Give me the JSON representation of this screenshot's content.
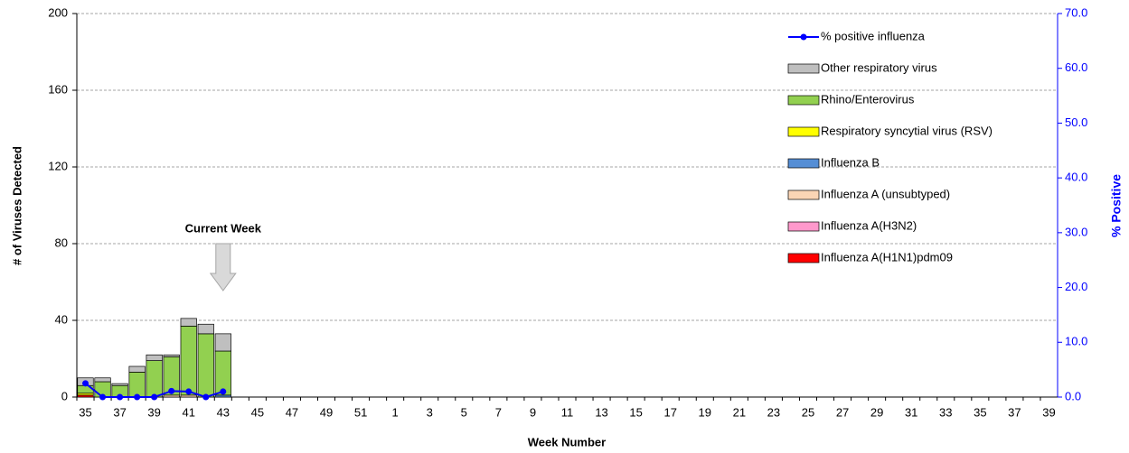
{
  "chart_data": {
    "type": "bar",
    "stacked": true,
    "annotation": "Current Week",
    "xlabel": "Week Number",
    "ylabel": "# of Viruses Detected",
    "y2label": "% Positive",
    "categories": [
      35,
      null,
      37,
      null,
      39,
      null,
      41,
      null,
      43,
      null,
      45,
      null,
      47,
      null,
      49,
      null,
      51,
      null,
      1,
      null,
      3,
      null,
      5,
      null,
      7,
      null,
      9,
      null,
      11,
      null,
      13,
      null,
      15,
      null,
      17,
      null,
      19,
      null,
      21,
      null,
      23,
      null,
      25,
      null,
      27,
      null,
      29,
      null,
      31,
      null,
      33,
      null,
      35,
      null,
      37,
      null,
      39
    ],
    "ylim": [
      0,
      200
    ],
    "yticks": [
      0,
      40,
      80,
      120,
      160,
      200
    ],
    "y2lim": [
      0,
      70
    ],
    "y2ticks": [
      {
        "value": 0,
        "label": "0.0"
      },
      {
        "value": 10,
        "label": "10.0"
      },
      {
        "value": 20,
        "label": "20.0"
      },
      {
        "value": 30,
        "label": "30.0"
      },
      {
        "value": 40,
        "label": "40.0"
      },
      {
        "value": 50,
        "label": "50.0"
      },
      {
        "value": 60,
        "label": "60.0"
      },
      {
        "value": 70,
        "label": "70.0"
      }
    ],
    "grid": true,
    "legend": "upper right",
    "series": [
      {
        "name": "Influenza A(H1N1)pdm09",
        "color": "#ff0000",
        "values": [
          1,
          0,
          0,
          0,
          0,
          0,
          0,
          0,
          0,
          null,
          null,
          null,
          null,
          null,
          null,
          null,
          null,
          null,
          null,
          null,
          null,
          null,
          null,
          null,
          null,
          null,
          null,
          null,
          null,
          null,
          null,
          null,
          null,
          null,
          null,
          null,
          null,
          null,
          null,
          null,
          null,
          null,
          null,
          null,
          null,
          null,
          null,
          null,
          null,
          null,
          null,
          null,
          null,
          null,
          null,
          null,
          null
        ]
      },
      {
        "name": "Influenza A(H3N2)",
        "color": "#ff99cc",
        "values": [
          0,
          0,
          0,
          0,
          0,
          0,
          0,
          0,
          0,
          null,
          null,
          null,
          null,
          null,
          null,
          null,
          null,
          null,
          null,
          null,
          null,
          null,
          null,
          null,
          null,
          null,
          null,
          null,
          null,
          null,
          null,
          null,
          null,
          null,
          null,
          null,
          null,
          null,
          null,
          null,
          null,
          null,
          null,
          null,
          null,
          null,
          null,
          null,
          null,
          null,
          null,
          null,
          null,
          null,
          null,
          null,
          null
        ]
      },
      {
        "name": "Influenza A (unsubtyped)",
        "color": "#fbd5b5",
        "values": [
          0,
          0,
          0,
          0,
          0,
          1,
          1,
          0,
          0,
          null,
          null,
          null,
          null,
          null,
          null,
          null,
          null,
          null,
          null,
          null,
          null,
          null,
          null,
          null,
          null,
          null,
          null,
          null,
          null,
          null,
          null,
          null,
          null,
          null,
          null,
          null,
          null,
          null,
          null,
          null,
          null,
          null,
          null,
          null,
          null,
          null,
          null,
          null,
          null,
          null,
          null,
          null,
          null,
          null,
          null,
          null,
          null
        ]
      },
      {
        "name": "Influenza B",
        "color": "#558ed5",
        "values": [
          0,
          0,
          0,
          0,
          0,
          0,
          0,
          0,
          1,
          null,
          null,
          null,
          null,
          null,
          null,
          null,
          null,
          null,
          null,
          null,
          null,
          null,
          null,
          null,
          null,
          null,
          null,
          null,
          null,
          null,
          null,
          null,
          null,
          null,
          null,
          null,
          null,
          null,
          null,
          null,
          null,
          null,
          null,
          null,
          null,
          null,
          null,
          null,
          null,
          null,
          null,
          null,
          null,
          null,
          null,
          null,
          null
        ]
      },
      {
        "name": "Respiratory syncytial virus (RSV)",
        "color": "#ffff00",
        "values": [
          1,
          0,
          0,
          0,
          0,
          0,
          0,
          0,
          0,
          null,
          null,
          null,
          null,
          null,
          null,
          null,
          null,
          null,
          null,
          null,
          null,
          null,
          null,
          null,
          null,
          null,
          null,
          null,
          null,
          null,
          null,
          null,
          null,
          null,
          null,
          null,
          null,
          null,
          null,
          null,
          null,
          null,
          null,
          null,
          null,
          null,
          null,
          null,
          null,
          null,
          null,
          null,
          null,
          null,
          null,
          null,
          null
        ]
      },
      {
        "name": "Rhino/Enterovirus",
        "color": "#92d050",
        "values": [
          4,
          8,
          6,
          13,
          19,
          20,
          36,
          33,
          23,
          null,
          null,
          null,
          null,
          null,
          null,
          null,
          null,
          null,
          null,
          null,
          null,
          null,
          null,
          null,
          null,
          null,
          null,
          null,
          null,
          null,
          null,
          null,
          null,
          null,
          null,
          null,
          null,
          null,
          null,
          null,
          null,
          null,
          null,
          null,
          null,
          null,
          null,
          null,
          null,
          null,
          null,
          null,
          null,
          null,
          null,
          null,
          null
        ]
      },
      {
        "name": "Other respiratory virus",
        "color": "#bfbfbf",
        "values": [
          4,
          2,
          1,
          3,
          3,
          1,
          4,
          5,
          9,
          null,
          null,
          null,
          null,
          null,
          null,
          null,
          null,
          null,
          null,
          null,
          null,
          null,
          null,
          null,
          null,
          null,
          null,
          null,
          null,
          null,
          null,
          null,
          null,
          null,
          null,
          null,
          null,
          null,
          null,
          null,
          null,
          null,
          null,
          null,
          null,
          null,
          null,
          null,
          null,
          null,
          null,
          null,
          null,
          null,
          null,
          null,
          null
        ]
      },
      {
        "name": "% positive influenza",
        "color": "#0000ff",
        "axis": "y2",
        "values": [
          2.5,
          0,
          0,
          0,
          0,
          1.1,
          1.0,
          0,
          1.0,
          null,
          null,
          null,
          null,
          null,
          null,
          null,
          null,
          null,
          null,
          null,
          null,
          null,
          null,
          null,
          null,
          null,
          null,
          null,
          null,
          null,
          null,
          null,
          null,
          null,
          null,
          null,
          null,
          null,
          null,
          null,
          null,
          null,
          null,
          null,
          null,
          null,
          null,
          null,
          null,
          null,
          null,
          null,
          null,
          null,
          null,
          null,
          null
        ]
      }
    ]
  }
}
